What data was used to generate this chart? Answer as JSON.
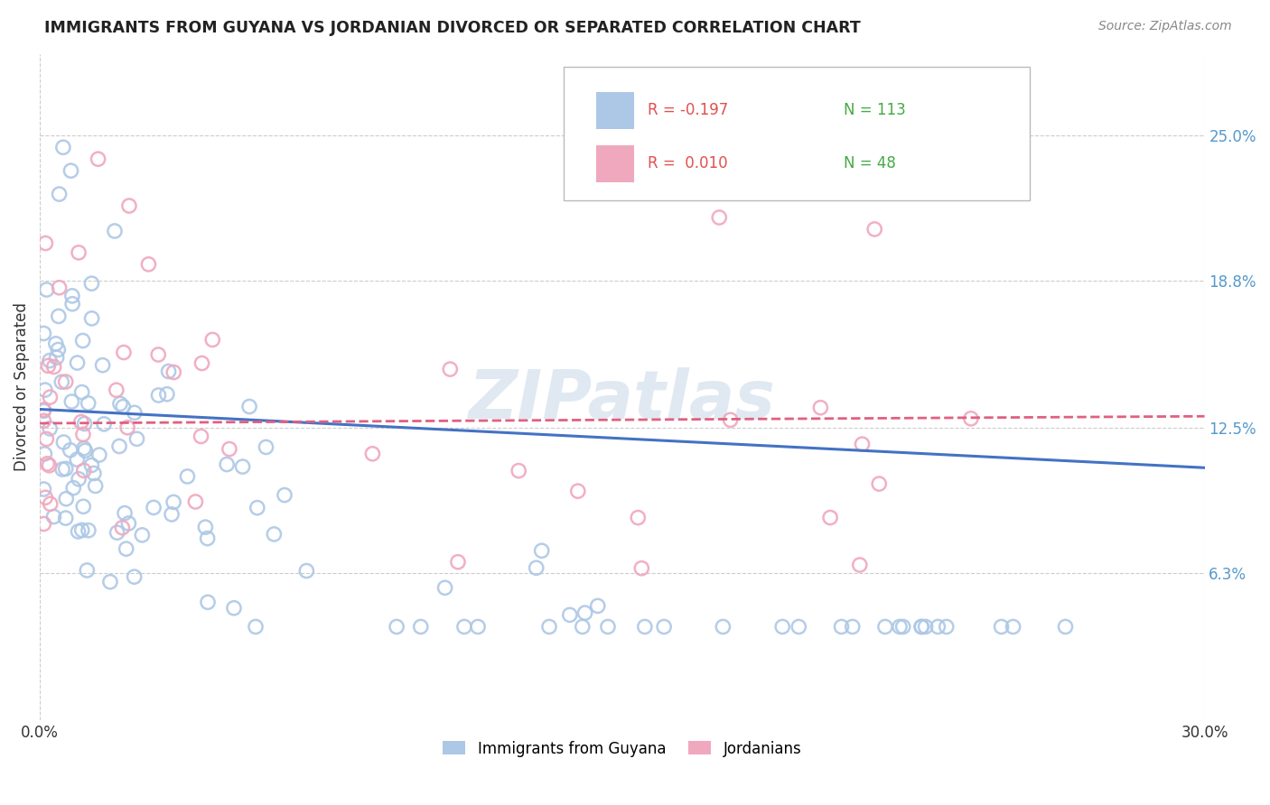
{
  "title": "IMMIGRANTS FROM GUYANA VS JORDANIAN DIVORCED OR SEPARATED CORRELATION CHART",
  "source_text": "Source: ZipAtlas.com",
  "ylabel": "Divorced or Separated",
  "right_yticks": [
    "6.3%",
    "12.5%",
    "18.8%",
    "25.0%"
  ],
  "right_ytick_vals": [
    0.063,
    0.125,
    0.188,
    0.25
  ],
  "xlim": [
    0.0,
    0.3
  ],
  "ylim": [
    0.0,
    0.285
  ],
  "watermark": "ZIPatlas",
  "blue_color": "#adc8e6",
  "pink_color": "#f0a8be",
  "blue_line_color": "#4472c4",
  "pink_line_color": "#e06080",
  "grid_color": "#cccccc",
  "legend_r_blue": "R = -0.197",
  "legend_n_blue": "N = 113",
  "legend_r_pink": "R =  0.010",
  "legend_n_pink": "N = 48",
  "legend_label_blue": "Immigrants from Guyana",
  "legend_label_pink": "Jordanians",
  "blue_line_y0": 0.133,
  "blue_line_y1": 0.108,
  "pink_line_y0": 0.127,
  "pink_line_y1": 0.13
}
